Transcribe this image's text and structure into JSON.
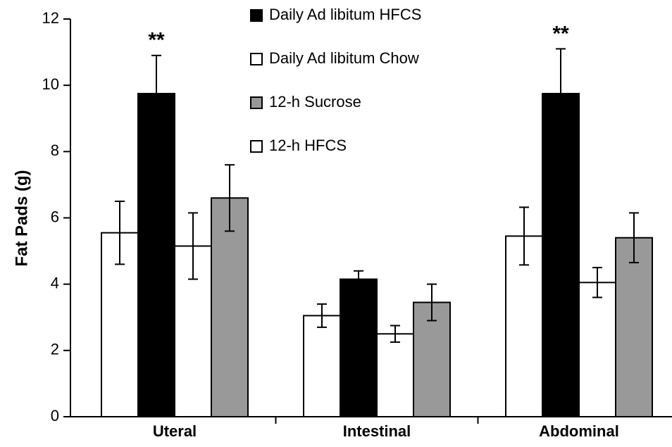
{
  "chart_data": {
    "type": "bar",
    "ylabel": "Fat Pads (g)",
    "categories": [
      "Uteral",
      "Intestinal",
      "Abdominal"
    ],
    "series": [
      {
        "name": "Daily Ad libitum HFCS",
        "color": "#000000",
        "values": [
          9.75,
          4.15,
          9.75
        ],
        "errors": [
          1.15,
          0.25,
          1.35
        ]
      },
      {
        "name": "Daily Ad libitum Chow",
        "color": "#ffffff",
        "values": [
          5.55,
          3.05,
          5.45
        ],
        "errors": [
          0.95,
          0.35,
          0.87
        ]
      },
      {
        "name": "12-h Sucrose",
        "color": "#999999",
        "values": [
          6.6,
          3.45,
          5.4
        ],
        "errors": [
          1.0,
          0.55,
          0.75
        ]
      },
      {
        "name": "12-h HFCS",
        "color": "#ffffff",
        "values": [
          5.15,
          2.5,
          4.05
        ],
        "errors": [
          1.0,
          0.25,
          0.45
        ]
      }
    ],
    "annotations": [
      {
        "text": "**",
        "category": "Uteral",
        "series": "Daily Ad libitum HFCS"
      },
      {
        "text": "**",
        "category": "Abdominal",
        "series": "Daily Ad libitum HFCS"
      }
    ],
    "ylim": [
      0,
      12
    ],
    "yticks": [
      0,
      2,
      4,
      6,
      8,
      10,
      12
    ],
    "grid": false
  }
}
